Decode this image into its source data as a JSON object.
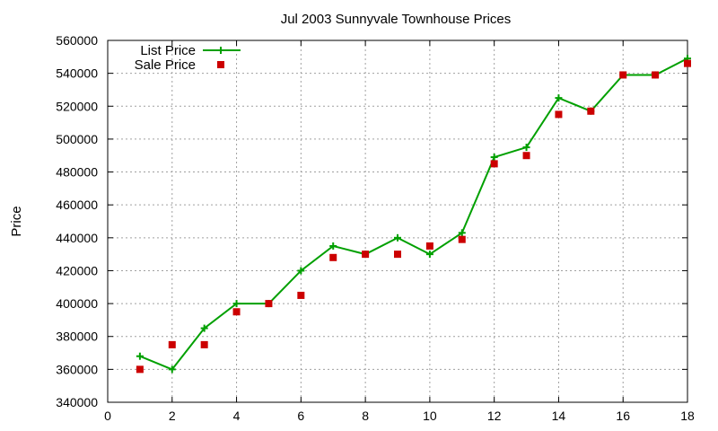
{
  "colors": {
    "list_price": "#00a000",
    "sale_price": "#cc0000",
    "grid": "#a0a0a0",
    "axis": "#000000"
  },
  "chart_data": {
    "type": "line",
    "title": "Jul 2003 Sunnyvale Townhouse Prices",
    "xlabel": "",
    "ylabel": "Price",
    "xlim": [
      0,
      18
    ],
    "ylim": [
      340000,
      560000
    ],
    "xticks": [
      0,
      2,
      4,
      6,
      8,
      10,
      12,
      14,
      16,
      18
    ],
    "yticks": [
      340000,
      360000,
      380000,
      400000,
      420000,
      440000,
      460000,
      480000,
      500000,
      520000,
      540000,
      560000
    ],
    "grid": true,
    "legend_position": "top-left",
    "series": [
      {
        "name": "List Price",
        "style": "line-with-plus-markers",
        "x": [
          1,
          2,
          3,
          4,
          5,
          6,
          7,
          8,
          9,
          10,
          11,
          12,
          13,
          14,
          15,
          16,
          17,
          18
        ],
        "y": [
          368000,
          360000,
          385000,
          400000,
          400000,
          420000,
          435000,
          430000,
          440000,
          430000,
          443000,
          489000,
          495000,
          525000,
          517000,
          539000,
          539000,
          549000
        ]
      },
      {
        "name": "Sale Price",
        "style": "square-markers",
        "x": [
          1,
          2,
          3,
          4,
          5,
          6,
          7,
          8,
          9,
          10,
          11,
          12,
          13,
          14,
          15,
          16,
          17,
          18
        ],
        "y": [
          360000,
          375000,
          375000,
          395000,
          400000,
          405000,
          428000,
          430000,
          430000,
          435000,
          439000,
          485000,
          490000,
          515000,
          517000,
          539000,
          539000,
          546000
        ]
      }
    ]
  }
}
